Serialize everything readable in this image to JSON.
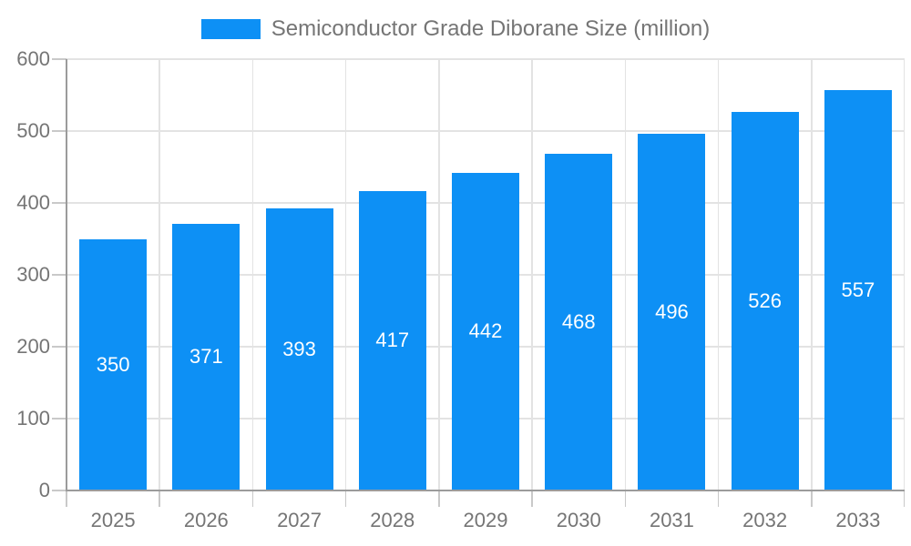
{
  "legend": {
    "label": "Semiconductor Grade Diborane Size (million)"
  },
  "chart_data": {
    "type": "bar",
    "title": "Semiconductor Grade Diborane Size (million)",
    "categories": [
      "2025",
      "2026",
      "2027",
      "2028",
      "2029",
      "2030",
      "2031",
      "2032",
      "2033"
    ],
    "series": [
      {
        "name": "Semiconductor Grade Diborane Size (million)",
        "values": [
          350,
          371,
          393,
          417,
          442,
          468,
          496,
          526,
          557
        ]
      }
    ],
    "xlabel": "",
    "ylabel": "",
    "ylim": [
      0,
      600
    ],
    "y_ticks": [
      0,
      100,
      200,
      300,
      400,
      500,
      600
    ],
    "grid": true,
    "legend_position": "top",
    "bar_labels_shown": true
  },
  "colors": {
    "bar": "#0D90F5",
    "bar_label": "#FFFFFF",
    "axis_text": "#757575",
    "axis_line": "#9B9B9B",
    "grid": "#E3E3E3",
    "tick": "#C9C9C9",
    "background": "#FFFFFF"
  }
}
